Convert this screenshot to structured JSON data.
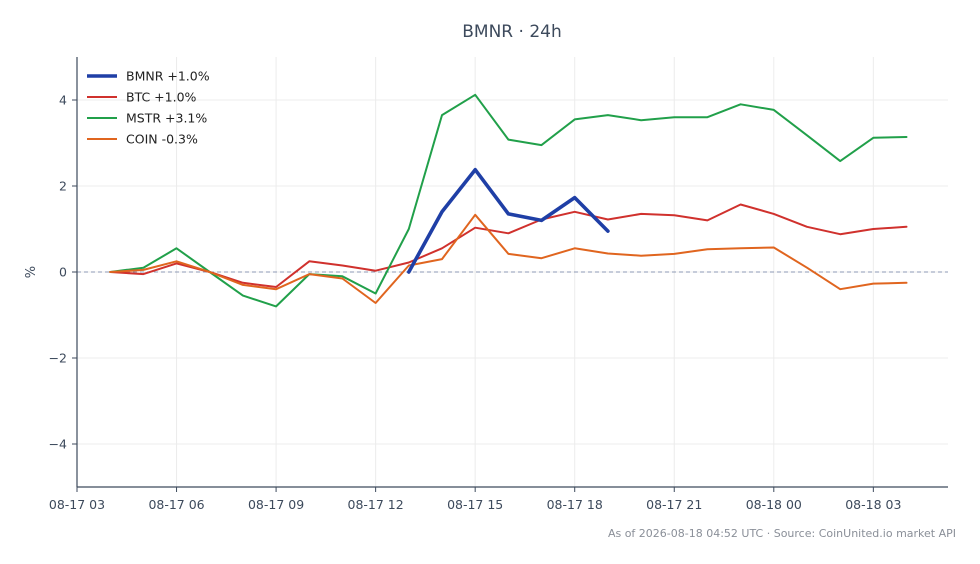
{
  "chart_data": {
    "type": "line",
    "title": "BMNR · 24h",
    "xlabel": "",
    "ylabel": "%",
    "xlim": [
      "2026-08-17 03:00",
      "2026-08-18 05:15"
    ],
    "ylim": [
      -5,
      5
    ],
    "x_ticks": [
      "2026-08-17 03:00",
      "2026-08-17 06:00",
      "2026-08-17 09:00",
      "2026-08-17 12:00",
      "2026-08-17 15:00",
      "2026-08-17 18:00",
      "2026-08-17 21:00",
      "2026-08-18 00:00",
      "2026-08-18 03:00"
    ],
    "x_tick_labels": [
      "08-17 03",
      "08-17 06",
      "08-17 09",
      "08-17 12",
      "08-17 15",
      "08-17 18",
      "08-17 21",
      "08-18 00",
      "08-18 03"
    ],
    "y_ticks": [
      -4,
      -2,
      0,
      2,
      4
    ],
    "y_tick_labels": [
      "−4",
      "−2",
      "0",
      "2",
      "4"
    ],
    "zero_line": true,
    "grid": true,
    "legend_position": "top-left",
    "series": [
      {
        "name": "BMNR +1.0%",
        "color": "#1f3fa6",
        "emphasis": true,
        "x": [
          "2026-08-17 13:00",
          "2026-08-17 14:00",
          "2026-08-17 15:00",
          "2026-08-17 16:00",
          "2026-08-17 17:00",
          "2026-08-17 18:00",
          "2026-08-17 19:00"
        ],
        "values": [
          0,
          1.4,
          2.38,
          1.35,
          1.2,
          1.73,
          0.95
        ]
      },
      {
        "name": "BTC +1.0%",
        "color": "#d0312d",
        "x": [
          "2026-08-17 04:00",
          "2026-08-17 05:00",
          "2026-08-17 06:00",
          "2026-08-17 07:00",
          "2026-08-17 08:00",
          "2026-08-17 09:00",
          "2026-08-17 10:00",
          "2026-08-17 11:00",
          "2026-08-17 12:00",
          "2026-08-17 13:00",
          "2026-08-17 14:00",
          "2026-08-17 15:00",
          "2026-08-17 16:00",
          "2026-08-17 17:00",
          "2026-08-17 18:00",
          "2026-08-17 19:00",
          "2026-08-17 20:00",
          "2026-08-17 21:00",
          "2026-08-17 22:00",
          "2026-08-17 23:00",
          "2026-08-18 00:00",
          "2026-08-18 01:00",
          "2026-08-18 02:00",
          "2026-08-18 03:00",
          "2026-08-18 04:00"
        ],
        "values": [
          0,
          -0.05,
          0.2,
          0,
          -0.25,
          -0.35,
          0.25,
          0.15,
          0.03,
          0.22,
          0.55,
          1.03,
          0.9,
          1.22,
          1.4,
          1.22,
          1.35,
          1.32,
          1.2,
          1.57,
          1.35,
          1.05,
          0.88,
          1.0,
          1.05
        ]
      },
      {
        "name": "MSTR +3.1%",
        "color": "#21a04a",
        "x": [
          "2026-08-17 04:00",
          "2026-08-17 05:00",
          "2026-08-17 06:00",
          "2026-08-17 07:00",
          "2026-08-17 08:00",
          "2026-08-17 09:00",
          "2026-08-17 10:00",
          "2026-08-17 11:00",
          "2026-08-17 12:00",
          "2026-08-17 13:00",
          "2026-08-17 14:00",
          "2026-08-17 15:00",
          "2026-08-17 16:00",
          "2026-08-17 17:00",
          "2026-08-17 18:00",
          "2026-08-17 19:00",
          "2026-08-17 20:00",
          "2026-08-17 21:00",
          "2026-08-17 22:00",
          "2026-08-17 23:00",
          "2026-08-18 00:00",
          "2026-08-18 01:00",
          "2026-08-18 02:00",
          "2026-08-18 03:00",
          "2026-08-18 04:00"
        ],
        "values": [
          0,
          0.1,
          0.55,
          0,
          -0.55,
          -0.8,
          -0.05,
          -0.1,
          -0.5,
          1.0,
          3.65,
          4.12,
          3.08,
          2.95,
          3.55,
          3.65,
          3.53,
          3.6,
          3.6,
          3.9,
          3.77,
          3.18,
          2.58,
          3.12,
          3.14
        ]
      },
      {
        "name": "COIN -0.3%",
        "color": "#e0651f",
        "x": [
          "2026-08-17 04:00",
          "2026-08-17 05:00",
          "2026-08-17 06:00",
          "2026-08-17 07:00",
          "2026-08-17 08:00",
          "2026-08-17 09:00",
          "2026-08-17 10:00",
          "2026-08-17 11:00",
          "2026-08-17 12:00",
          "2026-08-17 13:00",
          "2026-08-17 14:00",
          "2026-08-17 15:00",
          "2026-08-17 16:00",
          "2026-08-17 17:00",
          "2026-08-17 18:00",
          "2026-08-17 19:00",
          "2026-08-17 20:00",
          "2026-08-17 21:00",
          "2026-08-17 22:00",
          "2026-08-17 23:00",
          "2026-08-18 00:00",
          "2026-08-18 01:00",
          "2026-08-18 02:00",
          "2026-08-18 03:00",
          "2026-08-18 04:00"
        ],
        "values": [
          0,
          0.05,
          0.25,
          0,
          -0.3,
          -0.4,
          -0.05,
          -0.15,
          -0.72,
          0.15,
          0.3,
          1.33,
          0.42,
          0.32,
          0.55,
          0.43,
          0.38,
          0.42,
          0.53,
          0.55,
          0.57,
          0.1,
          -0.4,
          -0.27,
          -0.25
        ]
      }
    ],
    "footer": "As of 2026-08-18 04:52 UTC · Source: CoinUnited.io market API"
  }
}
